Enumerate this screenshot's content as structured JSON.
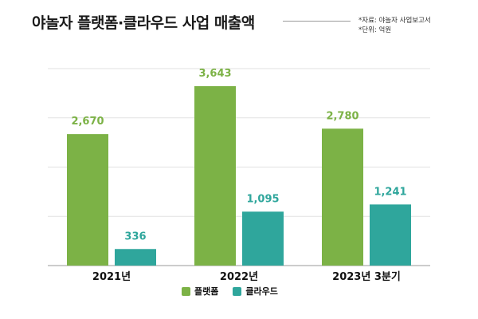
{
  "header": {
    "title": "야놀자 플랫폼·클라우드 사업 매출액",
    "source": "*자료: 야놀자 사업보고서",
    "unit": "*단위: 억원"
  },
  "colors": {
    "platform": "#7cb246",
    "cloud": "#2fa69c"
  },
  "chart_data": {
    "type": "bar",
    "title": "야놀자 플랫폼·클라우드 사업 매출액",
    "categories": [
      "2021년",
      "2022년",
      "2023년 3분기"
    ],
    "series": [
      {
        "name": "플랫폼",
        "values": [
          2670,
          3643,
          2780
        ],
        "labels": [
          "2,670",
          "3,643",
          "2,780"
        ]
      },
      {
        "name": "클라우드",
        "values": [
          336,
          1095,
          1241
        ],
        "labels": [
          "336",
          "1,095",
          "1,241"
        ]
      }
    ],
    "ylim": [
      0,
      4000
    ],
    "grid": true,
    "xlabel": "",
    "ylabel": "",
    "legend": "bottom-center"
  }
}
